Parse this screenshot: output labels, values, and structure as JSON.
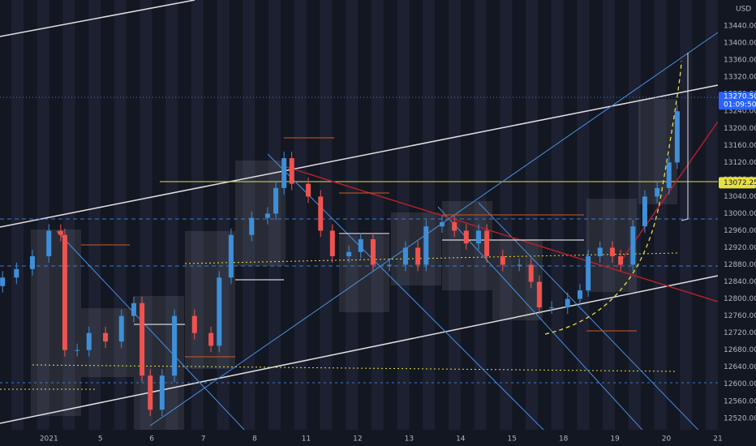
{
  "chart_data": {
    "type": "candlestick",
    "currency": "USD",
    "countdown": "01:09:50",
    "last_price": {
      "value": 13270.5,
      "label": "13270.50"
    },
    "marker_price": {
      "value": 13072.25,
      "label": "13072.25"
    },
    "up_color": "#3e8fd8",
    "down_color": "#ef5350",
    "xlim": [
      -0.95,
      13.0
    ],
    "ylim": [
      12493,
      13501
    ],
    "xticks": [
      {
        "value": 0,
        "label": "2021"
      },
      {
        "value": 1,
        "label": "5"
      },
      {
        "value": 2,
        "label": "6"
      },
      {
        "value": 3,
        "label": "7"
      },
      {
        "value": 4,
        "label": "8"
      },
      {
        "value": 5,
        "label": "11"
      },
      {
        "value": 6,
        "label": "12"
      },
      {
        "value": 7,
        "label": "13"
      },
      {
        "value": 8,
        "label": "14"
      },
      {
        "value": 9,
        "label": "15"
      },
      {
        "value": 10,
        "label": "18"
      },
      {
        "value": 11,
        "label": "19"
      },
      {
        "value": 12,
        "label": "20"
      },
      {
        "value": 13,
        "label": "21"
      }
    ],
    "yticks": [
      {
        "value": 12520,
        "label": "12520.00"
      },
      {
        "value": 12560,
        "label": "12560.00"
      },
      {
        "value": 12600,
        "label": "12600.00"
      },
      {
        "value": 12640,
        "label": "12640.00"
      },
      {
        "value": 12680,
        "label": "12680.00"
      },
      {
        "value": 12720,
        "label": "12720.00"
      },
      {
        "value": 12760,
        "label": "12760.00"
      },
      {
        "value": 12800,
        "label": "12800.00"
      },
      {
        "value": 12840,
        "label": "12840.00"
      },
      {
        "value": 12880,
        "label": "12880.00"
      },
      {
        "value": 12920,
        "label": "12920.00"
      },
      {
        "value": 12960,
        "label": "12960.00"
      },
      {
        "value": 13000,
        "label": "13000.00"
      },
      {
        "value": 13040,
        "label": "13040.00"
      },
      {
        "value": 13080,
        "label": "13080.00"
      },
      {
        "value": 13120,
        "label": "13120.00"
      },
      {
        "value": 13160,
        "label": "13160.00"
      },
      {
        "value": 13200,
        "label": "13200.00"
      },
      {
        "value": 13240,
        "label": "13240.00"
      },
      {
        "value": 13280,
        "label": "13280.00"
      },
      {
        "value": 13320,
        "label": "13320.00"
      },
      {
        "value": 13360,
        "label": "13360.00"
      },
      {
        "value": 13400,
        "label": "13400.00"
      },
      {
        "value": 13440,
        "label": "13440.00"
      }
    ],
    "x": [
      -0.9,
      -0.63,
      -0.32,
      0,
      0.23,
      0.31,
      0.55,
      0.78,
      1.1,
      1.41,
      1.65,
      1.81,
      1.97,
      2.2,
      2.44,
      2.83,
      3.15,
      3.31,
      3.54,
      3.94,
      4.25,
      4.41,
      4.57,
      4.72,
      5.04,
      5.28,
      5.51,
      5.83,
      6.06,
      6.3,
      6.62,
      6.93,
      7.17,
      7.33,
      7.64,
      7.88,
      8.11,
      8.35,
      8.51,
      8.82,
      9.14,
      9.37,
      9.53,
      9.77,
      10.08,
      10.32,
      10.48,
      10.71,
      10.95,
      11.11,
      11.35,
      11.58,
      11.82,
      12.05,
      12.21
    ],
    "open": [
      12830,
      12850,
      12870,
      12900,
      12960,
      12950,
      12680,
      12680,
      12720,
      12700,
      12760,
      12790,
      12620,
      12540,
      12620,
      12760,
      12720,
      12690,
      12850,
      12950,
      12990,
      13000,
      13060,
      13130,
      13070,
      13040,
      12960,
      12900,
      12910,
      12940,
      12880,
      12880,
      12920,
      12880,
      12970,
      12980,
      12960,
      12930,
      12960,
      12900,
      12880,
      12880,
      12840,
      12780,
      12780,
      12800,
      12820,
      12900,
      12920,
      12900,
      12880,
      12970,
      13040,
      13060,
      13120
    ],
    "high": [
      12865,
      12885,
      12915,
      12975,
      12975,
      12965,
      12695,
      12735,
      12735,
      12775,
      12805,
      12805,
      12635,
      12635,
      12775,
      12775,
      12735,
      12865,
      12965,
      13005,
      13015,
      13075,
      13145,
      13145,
      13085,
      13055,
      12975,
      12925,
      12955,
      12955,
      12895,
      12935,
      12935,
      12985,
      12995,
      12995,
      12975,
      12975,
      12975,
      12915,
      12895,
      12895,
      12855,
      12795,
      12815,
      12835,
      12915,
      12935,
      12935,
      12915,
      12985,
      13055,
      13075,
      13135,
      13255
    ],
    "low": [
      12815,
      12835,
      12855,
      12885,
      12935,
      12665,
      12665,
      12665,
      12685,
      12685,
      12745,
      12605,
      12525,
      12525,
      12605,
      12705,
      12675,
      12675,
      12835,
      12935,
      12975,
      12985,
      13045,
      13055,
      13025,
      12945,
      12885,
      12885,
      12895,
      12865,
      12865,
      12865,
      12865,
      12865,
      12955,
      12945,
      12915,
      12915,
      12885,
      12865,
      12865,
      12825,
      12765,
      12765,
      12765,
      12785,
      12805,
      12885,
      12885,
      12865,
      12865,
      12955,
      13025,
      13045,
      13105
    ],
    "close": [
      12850,
      12870,
      12900,
      12960,
      12950,
      12680,
      12680,
      12720,
      12700,
      12760,
      12790,
      12620,
      12540,
      12620,
      12760,
      12720,
      12690,
      12850,
      12950,
      12990,
      13000,
      13060,
      13130,
      13070,
      13040,
      12960,
      12900,
      12910,
      12940,
      12880,
      12880,
      12920,
      12880,
      12970,
      12980,
      12960,
      12930,
      12960,
      12900,
      12880,
      12880,
      12840,
      12780,
      12780,
      12800,
      12820,
      12900,
      12920,
      12900,
      12880,
      12970,
      13040,
      13060,
      13120,
      13240
    ]
  }
}
